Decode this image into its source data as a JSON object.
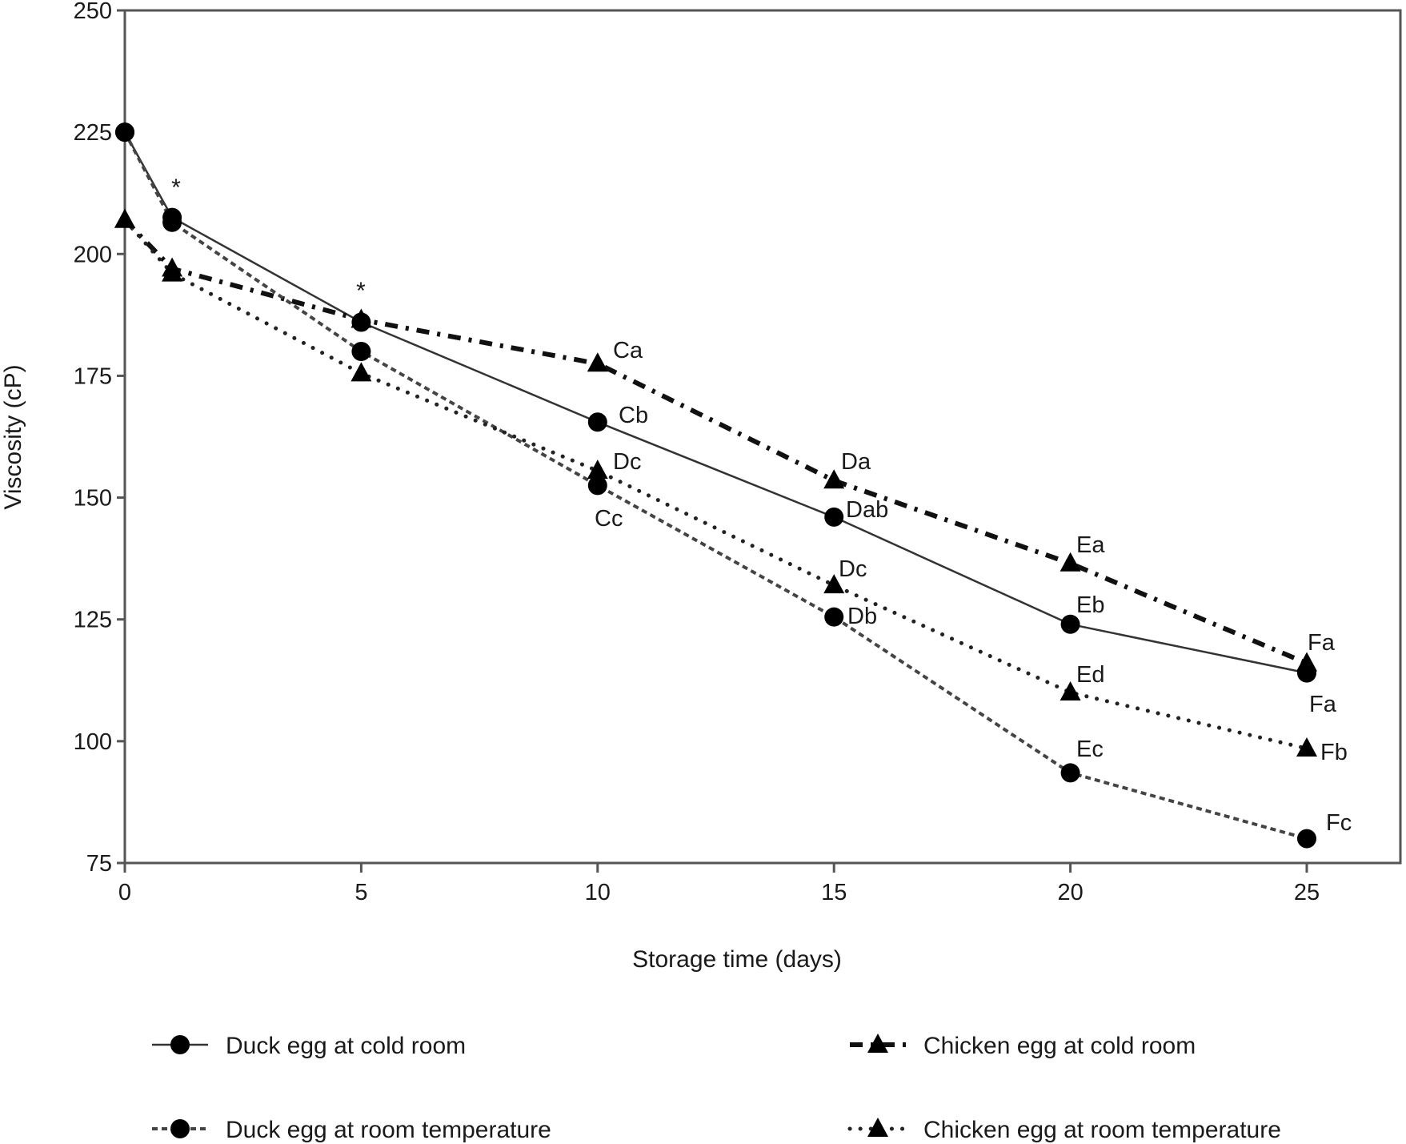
{
  "chart_data": {
    "type": "line",
    "title": "",
    "xlabel": "Storage time (days)",
    "ylabel": "Viscosity (cP)",
    "xlim": [
      0,
      27
    ],
    "ylim": [
      75,
      250
    ],
    "xticks": [
      0,
      5,
      10,
      15,
      20,
      25
    ],
    "yticks": [
      75,
      100,
      125,
      150,
      175,
      200,
      225,
      250
    ],
    "grid": false,
    "legend_position": "bottom",
    "x": [
      0,
      1,
      5,
      10,
      15,
      20,
      25
    ],
    "series": [
      {
        "name": "Duck egg at cold room",
        "marker": "circle",
        "line": "solid",
        "values": [
          225,
          207.5,
          186,
          165.5,
          146,
          124,
          114
        ]
      },
      {
        "name": "Chicken egg at cold room",
        "marker": "triangle",
        "line": "dash-dot",
        "values": [
          207,
          197,
          186.5,
          177.5,
          153.5,
          136.5,
          116
        ]
      },
      {
        "name": "Duck egg at room temperature",
        "marker": "circle",
        "line": "dashed",
        "values": [
          225,
          206.5,
          180,
          152.5,
          125.5,
          93.5,
          80
        ]
      },
      {
        "name": "Chicken egg at room temperature",
        "marker": "triangle",
        "line": "dotted",
        "values": [
          207,
          196,
          175.5,
          155.5,
          132,
          110,
          98.5
        ]
      }
    ],
    "annotations": [
      {
        "x": 1,
        "text": "*"
      },
      {
        "x": 5,
        "text": "*"
      },
      {
        "x": 10,
        "series": "Chicken egg at cold room",
        "text": "Ca"
      },
      {
        "x": 10,
        "series": "Duck egg at cold room",
        "text": "Cb"
      },
      {
        "x": 10,
        "series": "Chicken egg at room temperature",
        "text": "Dc"
      },
      {
        "x": 10,
        "series": "Duck egg at room temperature",
        "text": "Cc"
      },
      {
        "x": 15,
        "series": "Chicken egg at cold room",
        "text": "Da"
      },
      {
        "x": 15,
        "series": "Duck egg at cold room",
        "text": "Dab"
      },
      {
        "x": 15,
        "series": "Chicken egg at room temperature",
        "text": "Dc"
      },
      {
        "x": 15,
        "series": "Duck egg at room temperature",
        "text": "Db"
      },
      {
        "x": 20,
        "series": "Chicken egg at cold room",
        "text": "Ea"
      },
      {
        "x": 20,
        "series": "Duck egg at cold room",
        "text": "Eb"
      },
      {
        "x": 20,
        "series": "Chicken egg at room temperature",
        "text": "Ed"
      },
      {
        "x": 20,
        "series": "Duck egg at room temperature",
        "text": "Ec"
      },
      {
        "x": 25,
        "series": "Chicken egg at cold room",
        "text": "Fa"
      },
      {
        "x": 25,
        "series": "Duck egg at cold room",
        "text": "Fa"
      },
      {
        "x": 25,
        "series": "Chicken egg at room temperature",
        "text": "Fb"
      },
      {
        "x": 25,
        "series": "Duck egg at room temperature",
        "text": "Fc"
      }
    ]
  }
}
